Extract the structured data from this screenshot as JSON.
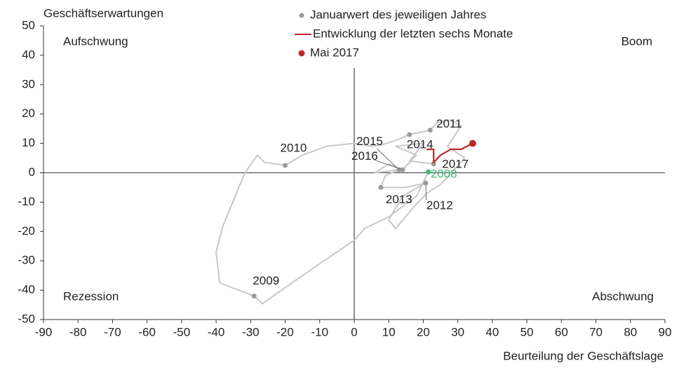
{
  "chart_data": {
    "type": "line",
    "x_label": "Beurteilung der Geschäftslage",
    "y_label": "Geschäftserwartungen",
    "xlim": [
      -90,
      90
    ],
    "xticks": [
      -90,
      -80,
      -70,
      -60,
      -50,
      -40,
      -30,
      -20,
      -10,
      0,
      10,
      20,
      30,
      40,
      50,
      60,
      70,
      80,
      90
    ],
    "ylim": [
      -50,
      50
    ],
    "yticks": [
      -50,
      -40,
      -30,
      -20,
      -10,
      0,
      10,
      20,
      30,
      40,
      50
    ],
    "quadrants": {
      "top_left": "Aufschwung",
      "top_right": "Boom",
      "bottom_left": "Rezession",
      "bottom_right": "Abschwung"
    },
    "legend": "top-center",
    "series": [
      {
        "color": "#c8c8c8",
        "marker": "none",
        "x": [
          21.5,
          18,
          10,
          3,
          0,
          -5,
          -15,
          -26.6,
          -29,
          -39,
          -40,
          -38,
          -32,
          -30.5,
          -28,
          -26,
          -20,
          -15,
          -8,
          0,
          5,
          8,
          12,
          16,
          22,
          24,
          28,
          31,
          27,
          32,
          25,
          21,
          17,
          12,
          10,
          14,
          20.7,
          15,
          7.7,
          9,
          13,
          6,
          10,
          14,
          18,
          12,
          20,
          16,
          23
        ],
        "y": [
          0.3,
          -8,
          -15,
          -19,
          -23,
          -27,
          -35,
          -44.6,
          -42,
          -37.5,
          -27,
          -18,
          -1,
          2,
          6,
          3.5,
          2.5,
          6,
          9,
          10,
          9,
          9.5,
          11,
          13,
          14.5,
          17,
          18,
          16,
          9,
          5,
          -4,
          -7,
          -12,
          -19,
          -16,
          -8,
          -3.5,
          -5,
          -5,
          -1,
          1,
          0,
          3,
          1,
          6,
          9,
          10,
          4,
          3
        ]
      },
      {
        "name": "Januarwert des jeweiligen Jahres",
        "color": "#9a9a9a",
        "marker": "point",
        "x": [
          21.5,
          -29,
          -20,
          22,
          20.7,
          7.7,
          16,
          13,
          14,
          23
        ],
        "y": [
          0.3,
          -42,
          2.5,
          14.5,
          -3.5,
          -5,
          13,
          1,
          1,
          3
        ],
        "point_labels": [
          "2008",
          "2009",
          "2010",
          "2011",
          "2012",
          "2013",
          "2014",
          "2015",
          "2016",
          "2017"
        ],
        "point_colors": [
          "#3cb878",
          "#9a9a9a",
          "#9a9a9a",
          "#9a9a9a",
          "#9a9a9a",
          "#9a9a9a",
          "#9a9a9a",
          "#9a9a9a",
          "#9a9a9a",
          "#9a9a9a"
        ]
      },
      {
        "name": "Entwicklung der letzten sechs Monate",
        "color": "#c0272d",
        "marker": "none",
        "x": [
          21,
          23,
          23,
          25,
          28,
          31,
          34.3
        ],
        "y": [
          8,
          8,
          3.5,
          6,
          8,
          8,
          10
        ]
      },
      {
        "name": "Mai 2017",
        "color": "#c0272d",
        "marker": "point",
        "x": [
          34.3
        ],
        "y": [
          10
        ]
      }
    ]
  }
}
